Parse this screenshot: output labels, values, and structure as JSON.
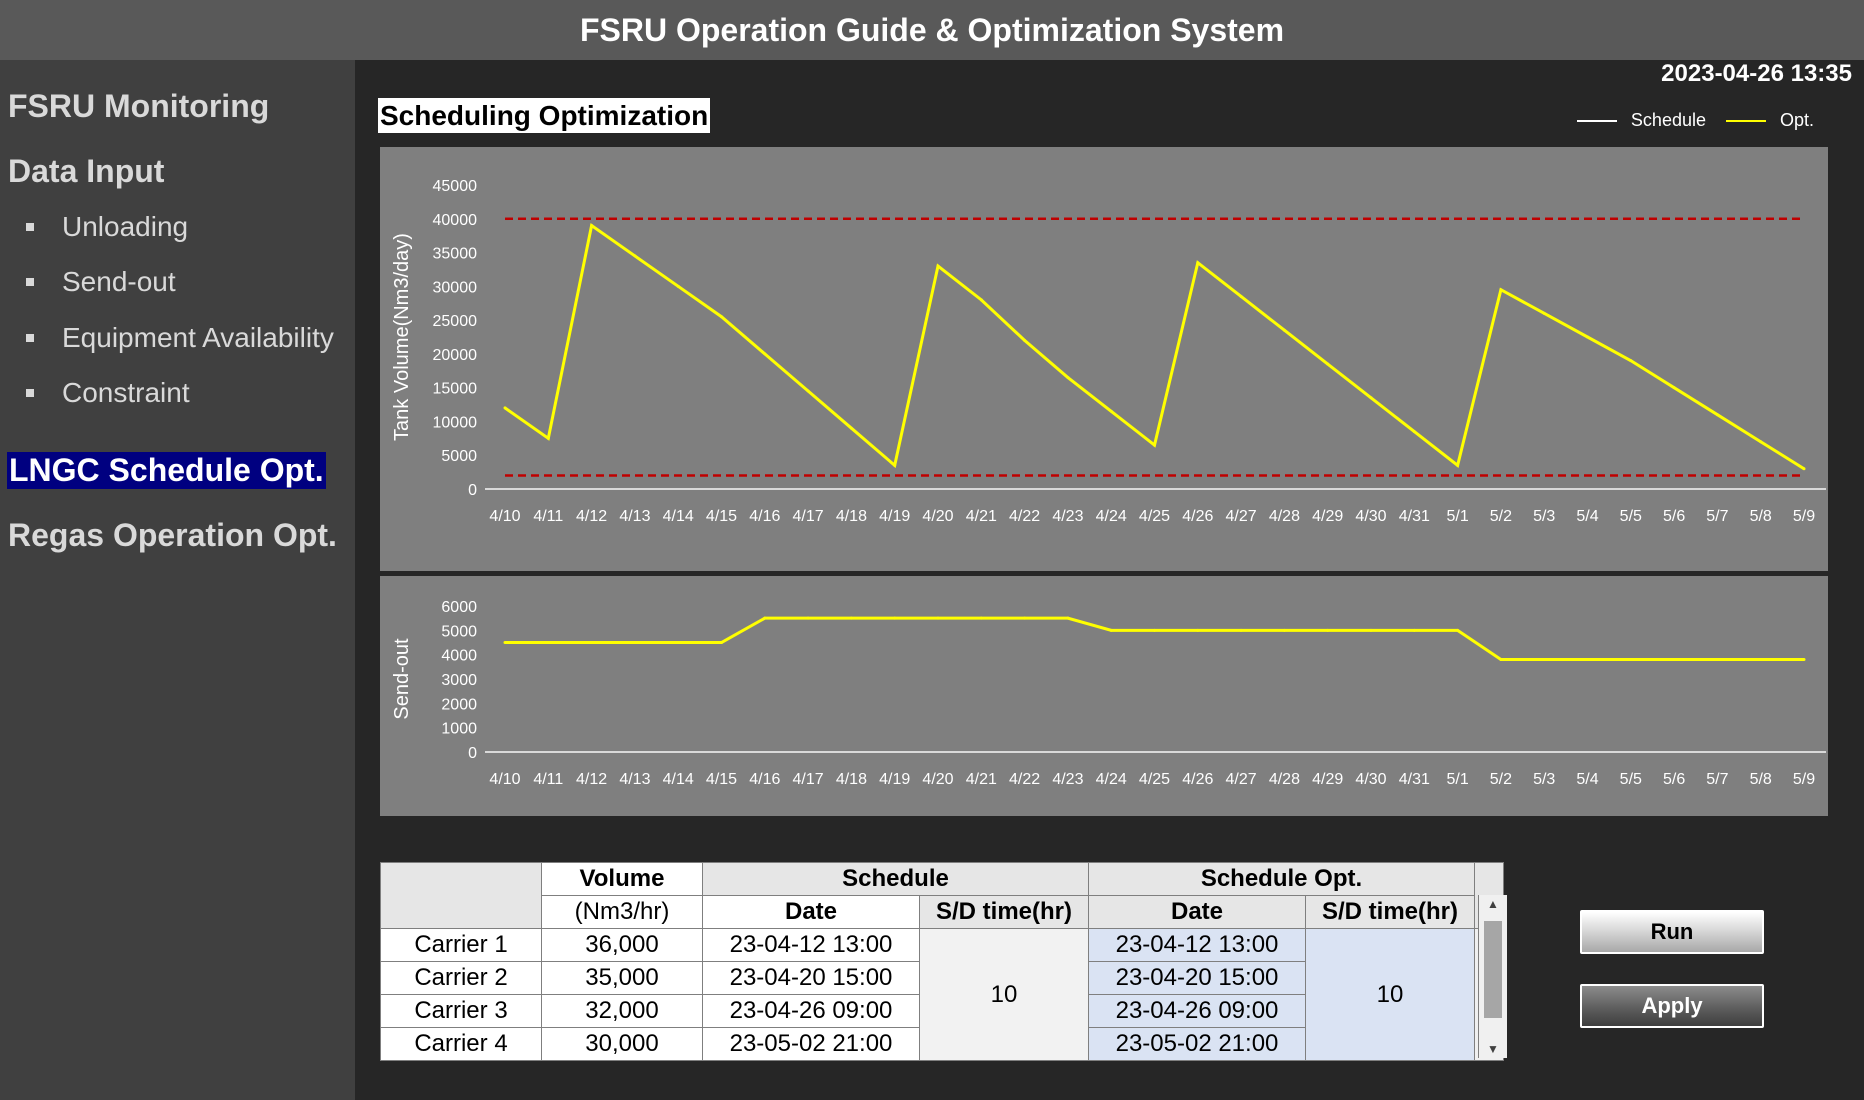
{
  "app": {
    "title": "FSRU Operation Guide & Optimization System",
    "datetime": "2023-04-26 13:35"
  },
  "sidebar": {
    "items": [
      {
        "label": "FSRU Monitoring",
        "level": "head",
        "active": false
      },
      {
        "label": "Data Input",
        "level": "head",
        "active": false
      },
      {
        "label": "Unloading",
        "level": "sub",
        "active": false
      },
      {
        "label": "Send-out",
        "level": "sub",
        "active": false
      },
      {
        "label": "Equipment Availability",
        "level": "sub",
        "active": false
      },
      {
        "label": "Constraint",
        "level": "sub",
        "active": false
      },
      {
        "label": "LNGC Schedule Opt.",
        "level": "head",
        "active": true
      },
      {
        "label": "Regas Operation Opt.",
        "level": "head",
        "active": false
      }
    ]
  },
  "main": {
    "section_title": "Scheduling Optimization",
    "legend": {
      "schedule_label": "Schedule",
      "opt_label": "Opt.",
      "schedule_color": "#ffffff",
      "opt_color": "#ffff00"
    }
  },
  "chart_data": [
    {
      "type": "line",
      "ylabel": "Tank Volume(Nm3/day)",
      "xlabel": "",
      "ylim": [
        0,
        45000
      ],
      "yticks": [
        0,
        5000,
        10000,
        15000,
        20000,
        25000,
        30000,
        35000,
        40000,
        45000
      ],
      "categories": [
        "4/10",
        "4/11",
        "4/12",
        "4/13",
        "4/14",
        "4/15",
        "4/16",
        "4/17",
        "4/18",
        "4/19",
        "4/20",
        "4/21",
        "4/22",
        "4/23",
        "4/24",
        "4/25",
        "4/26",
        "4/27",
        "4/28",
        "4/29",
        "4/30",
        "4/31",
        "5/1",
        "5/2",
        "5/3",
        "5/4",
        "5/5",
        "5/6",
        "5/7",
        "5/8",
        "5/9"
      ],
      "series": [
        {
          "name": "Opt.",
          "color": "#ffff00",
          "values": [
            12000,
            7500,
            39000,
            34500,
            30000,
            25500,
            20000,
            14500,
            9000,
            3500,
            33000,
            28000,
            22000,
            16500,
            11500,
            6500,
            33500,
            28500,
            23500,
            18500,
            13500,
            8500,
            3500,
            29500,
            26000,
            22500,
            19000,
            15000,
            11000,
            7000,
            3000
          ]
        }
      ],
      "reference_lines": [
        {
          "value": 40000,
          "color": "#c00000",
          "style": "dashed"
        },
        {
          "value": 2000,
          "color": "#c00000",
          "style": "dashed"
        }
      ]
    },
    {
      "type": "line",
      "ylabel": "Send-out",
      "xlabel": "",
      "ylim": [
        0,
        6000
      ],
      "yticks": [
        0,
        1000,
        2000,
        3000,
        4000,
        5000,
        6000
      ],
      "categories": [
        "4/10",
        "4/11",
        "4/12",
        "4/13",
        "4/14",
        "4/15",
        "4/16",
        "4/17",
        "4/18",
        "4/19",
        "4/20",
        "4/21",
        "4/22",
        "4/23",
        "4/24",
        "4/25",
        "4/26",
        "4/27",
        "4/28",
        "4/29",
        "4/30",
        "4/31",
        "5/1",
        "5/2",
        "5/3",
        "5/4",
        "5/5",
        "5/6",
        "5/7",
        "5/8",
        "5/9"
      ],
      "series": [
        {
          "name": "Opt.",
          "color": "#ffff00",
          "values": [
            4500,
            4500,
            4500,
            4500,
            4500,
            4500,
            5500,
            5500,
            5500,
            5500,
            5500,
            5500,
            5500,
            5500,
            5000,
            5000,
            5000,
            5000,
            5000,
            5000,
            5000,
            5000,
            5000,
            3800,
            3800,
            3800,
            3800,
            3800,
            3800,
            3800,
            3800
          ]
        }
      ]
    }
  ],
  "table": {
    "headers": {
      "volume": "Volume",
      "volume_unit": "(Nm3/hr)",
      "schedule": "Schedule",
      "schedule_opt": "Schedule Opt.",
      "date": "Date",
      "sd_time": "S/D time(hr)"
    },
    "rows": [
      {
        "carrier": "Carrier 1",
        "volume": "36,000",
        "date": "23-04-12 13:00",
        "opt_date": "23-04-12 13:00"
      },
      {
        "carrier": "Carrier 2",
        "volume": "35,000",
        "date": "23-04-20 15:00",
        "opt_date": "23-04-20 15:00"
      },
      {
        "carrier": "Carrier 3",
        "volume": "32,000",
        "date": "23-04-26 09:00",
        "opt_date": "23-04-26 09:00"
      },
      {
        "carrier": "Carrier 4",
        "volume": "30,000",
        "date": "23-05-02 21:00",
        "opt_date": "23-05-02 21:00"
      }
    ],
    "sd_time": "10",
    "opt_sd_time": "10"
  },
  "buttons": {
    "run": "Run",
    "apply": "Apply"
  }
}
